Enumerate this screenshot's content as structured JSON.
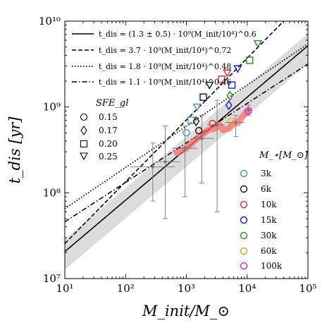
{
  "chart_data": {
    "type": "scatter",
    "scale": {
      "x": "log",
      "y": "log"
    },
    "xlim": [
      10,
      100000
    ],
    "ylim": [
      10000000,
      10000000000
    ],
    "xlabel": "M_init/M_⊙",
    "ylabel": "t_dis [yr]",
    "x_ticks": [
      {
        "value": 10,
        "label": "10¹"
      },
      {
        "value": 100,
        "label": "10²"
      },
      {
        "value": 1000,
        "label": "10³"
      },
      {
        "value": 10000,
        "label": "10⁴"
      },
      {
        "value": 100000,
        "label": "10⁵"
      }
    ],
    "y_ticks": [
      {
        "value": 10000000,
        "label": "10⁷"
      },
      {
        "value": 100000000,
        "label": "10⁸"
      },
      {
        "value": 1000000000,
        "label": "10⁹"
      },
      {
        "value": 10000000000,
        "label": "10¹⁰"
      }
    ],
    "fit_lines": [
      {
        "label": "t_dis = (1.3 ± 0.5) · 10⁹(M_init/10⁴)^0.6",
        "style": "solid",
        "norm": 1300000000,
        "slope": 0.6
      },
      {
        "label": "t_dis = 3.7 · 10⁹(M_init/10⁴)^0.72",
        "style": "dashed",
        "norm": 3700000000,
        "slope": 0.72
      },
      {
        "label": "t_dis = 1.8 · 10⁹(M_init/10⁴)^0.48",
        "style": "dotted",
        "norm": 1800000000,
        "slope": 0.48
      },
      {
        "label": "t_dis = 1.1 · 10⁹(M_init/10⁴)^0.46",
        "style": "dashdot",
        "norm": 1100000000,
        "slope": 0.46
      }
    ],
    "band": {
      "norm_low": 800000000,
      "norm_high": 1800000000,
      "slope": 0.6
    },
    "sfe_legend": {
      "title": "SFE_gl",
      "entries": [
        {
          "label": "0.15",
          "marker": "circle"
        },
        {
          "label": "0.17",
          "marker": "diamond"
        },
        {
          "label": "0.20",
          "marker": "square"
        },
        {
          "label": "0.25",
          "marker": "triangle-down"
        }
      ]
    },
    "mass_legend": {
      "title": "M_⋆[M_⊙]",
      "entries": [
        {
          "label": "3k",
          "color": "#4a90c8"
        },
        {
          "label": "6k",
          "color": "#111111"
        },
        {
          "label": "10k",
          "color": "#e8262a"
        },
        {
          "label": "15k",
          "color": "#1a1ad2"
        },
        {
          "label": "30k",
          "color": "#2a8a2a"
        },
        {
          "label": "60k",
          "color": "#e6a21a"
        },
        {
          "label": "100k",
          "color": "#e02ad0"
        }
      ]
    },
    "points": [
      {
        "x": 1000,
        "y": 500000000,
        "marker": "circle",
        "color": "#4a90c8"
      },
      {
        "x": 1200,
        "y": 700000000,
        "marker": "square",
        "color": "#4a90c8"
      },
      {
        "x": 1500,
        "y": 1000000000,
        "marker": "triangle-down",
        "color": "#4a90c8"
      },
      {
        "x": 1600,
        "y": 530000000,
        "marker": "circle",
        "color": "#111111"
      },
      {
        "x": 1450,
        "y": 680000000,
        "marker": "diamond",
        "color": "#111111"
      },
      {
        "x": 1900,
        "y": 1300000000,
        "marker": "square",
        "color": "#111111"
      },
      {
        "x": 2400,
        "y": 1800000000,
        "marker": "triangle-down",
        "color": "#111111"
      },
      {
        "x": 2700,
        "y": 640000000,
        "marker": "circle",
        "color": "#e8262a"
      },
      {
        "x": 3800,
        "y": 2100000000,
        "marker": "square",
        "color": "#e8262a"
      },
      {
        "x": 4700,
        "y": 2500000000,
        "marker": "triangle-down",
        "color": "#e8262a"
      },
      {
        "x": 5000,
        "y": 1050000000,
        "marker": "diamond",
        "color": "#1a1ad2"
      },
      {
        "x": 5600,
        "y": 1800000000,
        "marker": "square",
        "color": "#1a1ad2"
      },
      {
        "x": 7000,
        "y": 2800000000,
        "marker": "triangle-down",
        "color": "#1a1ad2"
      },
      {
        "x": 5200,
        "y": 1350000000,
        "marker": "diamond",
        "color": "#2a8a2a"
      },
      {
        "x": 11000,
        "y": 3500000000,
        "marker": "square",
        "color": "#2a8a2a"
      },
      {
        "x": 15000,
        "y": 5500000000,
        "marker": "triangle-down",
        "color": "#2a8a2a"
      },
      {
        "x": 5500,
        "y": 680000000,
        "marker": "circle",
        "color": "#e6a21a"
      },
      {
        "x": 10500,
        "y": 900000000,
        "marker": "circle",
        "color": "#e02ad0"
      }
    ],
    "mean_track": [
      {
        "x": 280,
        "y": 200000000,
        "y_err_low": 80000000,
        "y_err_high": 380000000,
        "x_err_low": 120,
        "x_err_high": 650
      },
      {
        "x": 450,
        "y": 230000000,
        "y_err_low": 50000000,
        "y_err_high": 600000000,
        "x_err_low": 300,
        "x_err_high": 800
      },
      {
        "x": 950,
        "y": 330000000,
        "y_err_low": 90000000,
        "y_err_high": 600000000,
        "x_err_low": 600,
        "x_err_high": 1500
      },
      {
        "x": 1800,
        "y": 430000000,
        "y_err_low": 130000000,
        "y_err_high": 800000000,
        "x_err_low": 1200,
        "x_err_high": 2800
      },
      {
        "x": 3200,
        "y": 620000000,
        "y_err_low": 60000000,
        "y_err_high": 1200000000,
        "x_err_low": 2200,
        "x_err_high": 4300
      },
      {
        "x": 6500,
        "y": 660000000,
        "y_err_low": 450000000,
        "y_err_high": 800000000,
        "x_err_low": 4300,
        "x_err_high": 9000
      },
      {
        "x": 10500,
        "y": 920000000,
        "y_err_low": 800000000,
        "y_err_high": 1050000000,
        "x_err_low": 9000,
        "x_err_high": 12000
      }
    ],
    "red_band": [
      {
        "x": 700,
        "y": 290000000
      },
      {
        "x": 1000,
        "y": 330000000
      },
      {
        "x": 1500,
        "y": 430000000
      },
      {
        "x": 2300,
        "y": 540000000
      },
      {
        "x": 2900,
        "y": 560000000
      },
      {
        "x": 3500,
        "y": 620000000
      },
      {
        "x": 4000,
        "y": 540000000
      },
      {
        "x": 5000,
        "y": 560000000
      },
      {
        "x": 6000,
        "y": 640000000
      },
      {
        "x": 7000,
        "y": 650000000
      },
      {
        "x": 9000,
        "y": 820000000
      },
      {
        "x": 10500,
        "y": 920000000
      }
    ]
  }
}
